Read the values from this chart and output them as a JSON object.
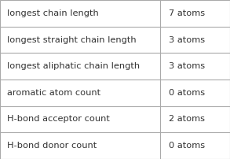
{
  "rows": [
    [
      "longest chain length",
      "7 atoms"
    ],
    [
      "longest straight chain length",
      "3 atoms"
    ],
    [
      "longest aliphatic chain length",
      "3 atoms"
    ],
    [
      "aromatic atom count",
      "0 atoms"
    ],
    [
      "H-bond acceptor count",
      "2 atoms"
    ],
    [
      "H-bond donor count",
      "0 atoms"
    ]
  ],
  "col_split": 0.695,
  "background_color": "#ffffff",
  "border_color": "#aaaaaa",
  "text_color": "#333333",
  "font_size": 8.2,
  "fig_width": 2.93,
  "fig_height": 2.02,
  "dpi": 100
}
